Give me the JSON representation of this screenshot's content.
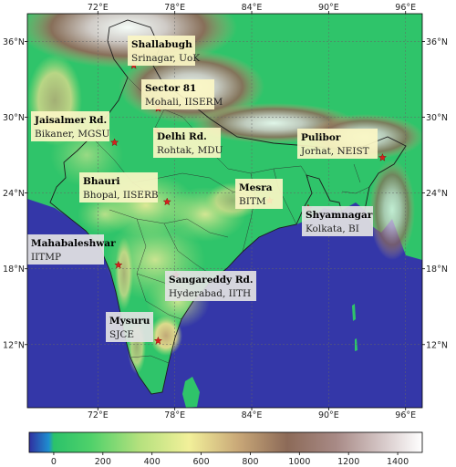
{
  "map": {
    "extent": {
      "lon_min": 66.5,
      "lon_max": 97.3,
      "lat_min": 7.0,
      "lat_max": 38.2
    },
    "lon_ticks": [
      {
        "value": 72,
        "label": "72°E"
      },
      {
        "value": 78,
        "label": "78°E"
      },
      {
        "value": 84,
        "label": "84°E"
      },
      {
        "value": 90,
        "label": "90°E"
      },
      {
        "value": 96,
        "label": "96°E"
      }
    ],
    "lat_ticks": [
      {
        "value": 12,
        "label": "12°N"
      },
      {
        "value": 18,
        "label": "18°N"
      },
      {
        "value": 24,
        "label": "24°N"
      },
      {
        "value": 30,
        "label": "30°N"
      },
      {
        "value": 36,
        "label": "36°N"
      }
    ],
    "colors": {
      "ocean": "#3437a8",
      "marker": "#d81f1f",
      "border": "#1c1c1c",
      "label_box_yellow": "#fbf6c4",
      "label_box_grey": "#e3e3e3"
    }
  },
  "sites": [
    {
      "name": "Shallabugh",
      "place": "Srinagar, UoK",
      "lon": 74.8,
      "lat": 34.1,
      "box": "yellow"
    },
    {
      "name": "Sector 81",
      "place": "Mohali, IISERM",
      "lon": 76.7,
      "lat": 30.7,
      "box": "yellow"
    },
    {
      "name": "Jaisalmer Rd.",
      "place": "Bikaner, MGSU",
      "lon": 73.3,
      "lat": 28.0,
      "box": "yellow"
    },
    {
      "name": "Delhi Rd.",
      "place": "Rohtak, MDU",
      "lon": 76.6,
      "lat": 28.9,
      "box": "yellow"
    },
    {
      "name": "Pulibor",
      "place": "Jorhat, NEIST",
      "lon": 94.2,
      "lat": 26.8,
      "box": "yellow"
    },
    {
      "name": "Bhauri",
      "place": "Bhopal, IISERB",
      "lon": 77.4,
      "lat": 23.3,
      "box": "yellow"
    },
    {
      "name": "Mesra",
      "place": "BITM",
      "lon": 85.4,
      "lat": 23.4,
      "box": "yellow"
    },
    {
      "name": "Shyamnagar",
      "place": "Kolkata, BI",
      "lon": 88.4,
      "lat": 22.8,
      "box": "grey"
    },
    {
      "name": "Mahabaleshwar",
      "place": "IITMP",
      "lon": 73.6,
      "lat": 18.3,
      "box": "grey"
    },
    {
      "name": "Sangareddy Rd.",
      "place": "Hyderabad, IITH",
      "lon": 78.1,
      "lat": 17.5,
      "box": "grey"
    },
    {
      "name": "Mysuru",
      "place": "SJCE",
      "lon": 76.7,
      "lat": 12.3,
      "box": "grey"
    }
  ],
  "colorbar": {
    "ticks": [
      0,
      200,
      400,
      600,
      800,
      1000,
      1200,
      1400
    ],
    "range": [
      -100,
      1500
    ],
    "stops": [
      {
        "value": -100,
        "color": "#2f2fa0"
      },
      {
        "value": -20,
        "color": "#1e8fd0"
      },
      {
        "value": 0,
        "color": "#2bc26a"
      },
      {
        "value": 150,
        "color": "#4fd16a"
      },
      {
        "value": 350,
        "color": "#b5e17e"
      },
      {
        "value": 550,
        "color": "#f2f09a"
      },
      {
        "value": 750,
        "color": "#c9a878"
      },
      {
        "value": 950,
        "color": "#8c6a58"
      },
      {
        "value": 1150,
        "color": "#a88a86"
      },
      {
        "value": 1350,
        "color": "#d9cccc"
      },
      {
        "value": 1500,
        "color": "#ffffff"
      }
    ]
  }
}
